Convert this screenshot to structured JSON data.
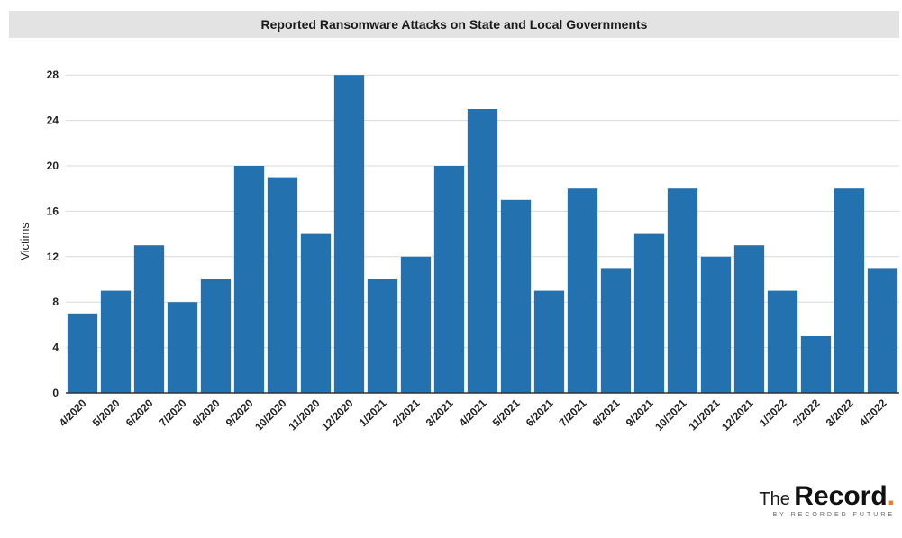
{
  "title": "Reported Ransomware Attacks on State and Local Governments",
  "colors": {
    "bar": "#2471b0",
    "accent": "#f07a22",
    "grid": "#d9d9d9",
    "title_bg": "#e3e3e3"
  },
  "logo": {
    "the": "The",
    "record": "Record",
    "dot": ".",
    "sub": "BY RECORDED FUTURE"
  },
  "chart_data": {
    "type": "bar",
    "title": "Reported Ransomware Attacks on State and Local Governments",
    "xlabel": "",
    "ylabel": "Victims",
    "ylim": [
      0,
      28
    ],
    "yticks": [
      0,
      4,
      8,
      12,
      16,
      20,
      24,
      28
    ],
    "grid": true,
    "categories": [
      "4/2020",
      "5/2020",
      "6/2020",
      "7/2020",
      "8/2020",
      "9/2020",
      "10/2020",
      "11/2020",
      "12/2020",
      "1/2021",
      "2/2021",
      "3/2021",
      "4/2021",
      "5/2021",
      "6/2021",
      "7/2021",
      "8/2021",
      "9/2021",
      "10/2021",
      "11/2021",
      "12/2021",
      "1/2022",
      "2/2022",
      "3/2022",
      "4/2022"
    ],
    "values": [
      7,
      9,
      13,
      8,
      10,
      20,
      19,
      14,
      28,
      10,
      12,
      20,
      25,
      17,
      9,
      18,
      11,
      14,
      18,
      12,
      13,
      9,
      5,
      18,
      11
    ]
  }
}
